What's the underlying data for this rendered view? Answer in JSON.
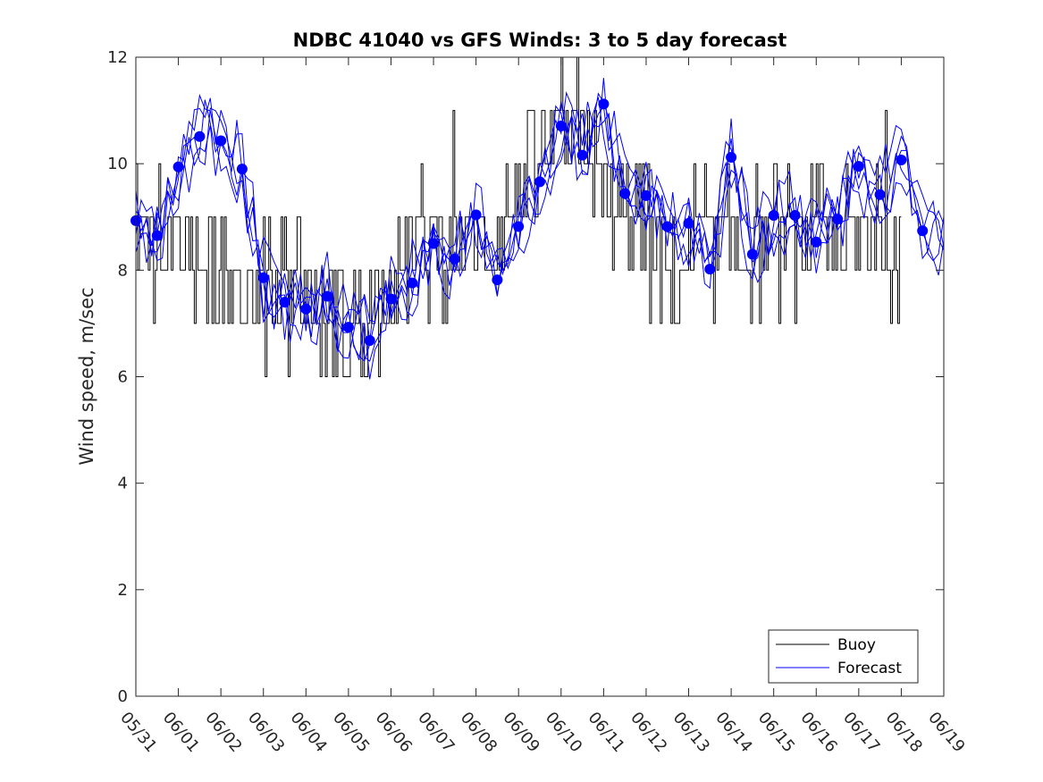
{
  "chart_data": {
    "type": "line",
    "title": "NDBC 41040 vs GFS Winds: 3 to 5 day forecast",
    "xlabel": "",
    "ylabel": "Wind speed, m/sec",
    "ylim": [
      0,
      12
    ],
    "yticks": [
      0,
      2,
      4,
      6,
      8,
      10,
      12
    ],
    "xlim": [
      "05/31",
      "06/19"
    ],
    "xticks": [
      "05/31",
      "06/01",
      "06/02",
      "06/03",
      "06/04",
      "06/05",
      "06/06",
      "06/07",
      "06/08",
      "06/09",
      "06/10",
      "06/11",
      "06/12",
      "06/13",
      "06/14",
      "06/15",
      "06/16",
      "06/17",
      "06/18",
      "06/19"
    ],
    "x_unit": "days since 05/31",
    "grid": false,
    "legend": {
      "position": "bottom-right",
      "entries": [
        "Buoy",
        "Forecast"
      ]
    },
    "colors": {
      "buoy": "#000000",
      "forecast": "#0000ff",
      "markers": "#0000ff"
    },
    "series": [
      {
        "name": "Buoy",
        "kind": "stepped-hourly",
        "x": [
          0,
          0.25,
          0.5,
          0.75,
          1,
          1.25,
          1.5,
          1.75,
          2,
          2.25,
          2.5,
          2.75,
          3,
          3.25,
          3.5,
          3.75,
          4,
          4.25,
          4.5,
          4.75,
          5,
          5.25,
          5.5,
          5.75,
          6,
          6.25,
          6.5,
          6.75,
          7,
          7.25,
          7.5,
          7.75,
          8,
          8.25,
          8.5,
          8.75,
          9,
          9.25,
          9.5,
          9.75,
          10,
          10.25,
          10.5,
          10.75,
          11,
          11.25,
          11.5,
          11.75,
          12,
          12.25,
          12.5,
          12.75,
          13,
          13.25,
          13.5,
          13.75,
          14,
          14.25,
          14.5,
          14.75,
          15,
          15.25,
          15.5,
          15.75,
          16,
          16.25,
          16.5,
          16.75,
          17,
          17.25,
          17.5,
          17.75,
          18
        ],
        "y": [
          8.5,
          8.5,
          8.5,
          8.5,
          8.5,
          8.5,
          8.0,
          8.0,
          8.0,
          8.0,
          7.5,
          7.5,
          7.5,
          7.5,
          8.0,
          8.0,
          7.5,
          7.5,
          7.0,
          7.0,
          7.0,
          7.0,
          7.5,
          7.5,
          8.0,
          8.0,
          8.5,
          8.5,
          8.5,
          8.5,
          8.5,
          8.5,
          8.5,
          8.5,
          8.5,
          9.0,
          9.5,
          9.5,
          10.0,
          10.0,
          10.5,
          10.5,
          10.5,
          10.0,
          9.5,
          9.0,
          9.0,
          9.0,
          8.5,
          8.5,
          8.0,
          8.0,
          8.0,
          8.5,
          8.5,
          8.5,
          8.5,
          8.5,
          8.5,
          8.5,
          8.5,
          8.5,
          8.5,
          8.5,
          8.5,
          8.5,
          8.5,
          8.5,
          8.5,
          8.5,
          9.0,
          8.5,
          8.5
        ]
      },
      {
        "name": "Forecast",
        "x": [
          0,
          0.5,
          1,
          1.5,
          2,
          2.5,
          3,
          3.5,
          4,
          4.5,
          5,
          5.5,
          6,
          6.5,
          7,
          7.5,
          8,
          8.5,
          9,
          9.5,
          10,
          10.5,
          11,
          11.5,
          12,
          12.5,
          13,
          13.5,
          14,
          14.5,
          15,
          15.5,
          16,
          16.5,
          17,
          17.5,
          18,
          18.5
        ],
        "y": [
          8.93,
          8.65,
          9.94,
          10.51,
          10.43,
          9.9,
          7.86,
          7.4,
          7.27,
          7.51,
          6.93,
          6.68,
          7.46,
          7.76,
          8.5,
          8.21,
          9.04,
          7.82,
          8.82,
          9.66,
          10.71,
          10.16,
          11.12,
          9.44,
          9.4,
          8.82,
          8.88,
          8.02,
          10.12,
          8.3,
          9.03,
          9.03,
          8.53,
          8.96,
          9.95,
          9.42,
          10.07,
          8.74
        ]
      }
    ],
    "markers": {
      "name": "Forecast",
      "x": [
        0,
        0.5,
        1,
        1.5,
        2,
        2.5,
        3,
        3.5,
        4,
        4.5,
        5,
        5.5,
        6,
        6.5,
        7,
        7.5,
        8,
        8.5,
        9,
        9.5,
        10,
        10.5,
        11,
        11.5,
        12,
        12.5,
        13,
        13.5,
        14,
        14.5,
        15,
        15.5,
        16,
        16.5,
        17,
        17.5,
        18,
        18.5
      ],
      "y": [
        8.93,
        8.65,
        9.94,
        10.51,
        10.43,
        9.9,
        7.86,
        7.4,
        7.27,
        7.51,
        6.93,
        6.68,
        7.46,
        7.76,
        8.5,
        8.21,
        9.04,
        7.82,
        8.82,
        9.66,
        10.71,
        10.16,
        11.12,
        9.44,
        9.4,
        8.82,
        8.88,
        8.02,
        10.12,
        8.3,
        9.03,
        9.03,
        8.53,
        8.96,
        9.95,
        9.42,
        10.07,
        8.74
      ]
    }
  }
}
